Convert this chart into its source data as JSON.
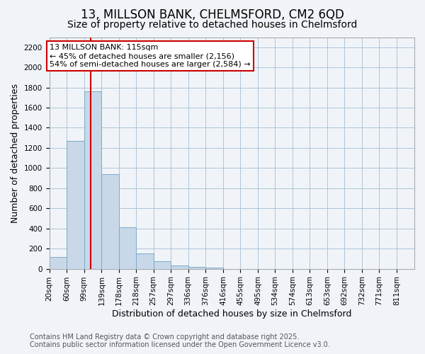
{
  "title_line1": "13, MILLSON BANK, CHELMSFORD, CM2 6QD",
  "title_line2": "Size of property relative to detached houses in Chelmsford",
  "xlabel": "Distribution of detached houses by size in Chelmsford",
  "ylabel": "Number of detached properties",
  "bar_color": "#c8d8e8",
  "bar_edge_color": "#7aaac8",
  "grid_color": "#b0c4d8",
  "background_color": "#f0f4f8",
  "red_line_x": 115,
  "annotation_text": "13 MILLSON BANK: 115sqm\n← 45% of detached houses are smaller (2,156)\n54% of semi-detached houses are larger (2,584) →",
  "annotation_box_color": "#ffffff",
  "annotation_border_color": "#cc0000",
  "footer_line1": "Contains HM Land Registry data © Crown copyright and database right 2025.",
  "footer_line2": "Contains public sector information licensed under the Open Government Licence v3.0.",
  "bin_labels": [
    "20sqm",
    "60sqm",
    "99sqm",
    "139sqm",
    "178sqm",
    "218sqm",
    "257sqm",
    "297sqm",
    "336sqm",
    "376sqm",
    "416sqm",
    "455sqm",
    "495sqm",
    "534sqm",
    "574sqm",
    "613sqm",
    "653sqm",
    "692sqm",
    "732sqm",
    "771sqm",
    "811sqm"
  ],
  "bin_values": [
    115,
    1270,
    1760,
    940,
    415,
    155,
    75,
    35,
    20,
    10,
    0,
    0,
    0,
    0,
    0,
    0,
    0,
    0,
    0,
    0,
    0
  ],
  "bin_edges": [
    20,
    60,
    99,
    139,
    178,
    218,
    257,
    297,
    336,
    376,
    416,
    455,
    495,
    534,
    574,
    613,
    653,
    692,
    732,
    771,
    811
  ],
  "ylim": [
    0,
    2300
  ],
  "yticks": [
    0,
    200,
    400,
    600,
    800,
    1000,
    1200,
    1400,
    1600,
    1800,
    2000,
    2200
  ],
  "title_fontsize": 12,
  "subtitle_fontsize": 10,
  "axis_label_fontsize": 9,
  "tick_fontsize": 7.5,
  "annotation_fontsize": 8,
  "footer_fontsize": 7
}
